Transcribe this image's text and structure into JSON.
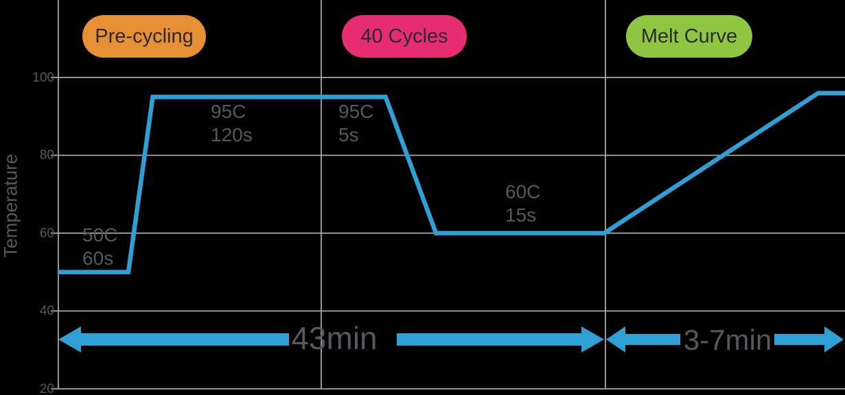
{
  "colors": {
    "background": "#000000",
    "line_blue": "#2fa0d6",
    "grid_gray": "#a8a8a8",
    "text_gray": "#57585b",
    "badge_text": "#2a2a2c",
    "precycling_orange": "#e78f35",
    "cycles_pink": "#e62d6f",
    "melt_green": "#8ec541"
  },
  "axis": {
    "ylabel": "Temperature",
    "yticks": [
      "100",
      "80",
      "60",
      "40",
      "20"
    ]
  },
  "badges": [
    {
      "label": "Pre-cycling",
      "color": "#e78f35"
    },
    {
      "label": "40 Cycles",
      "color": "#e62d6f"
    },
    {
      "label": "Melt Curve",
      "color": "#8ec541"
    }
  ],
  "annotations": [
    {
      "temp": "50C",
      "time": "60s"
    },
    {
      "temp": "95C",
      "time": "120s"
    },
    {
      "temp": "95C",
      "time": "5s"
    },
    {
      "temp": "60C",
      "time": "15s"
    }
  ],
  "durations": {
    "cycling": "43min",
    "melt": "3-7min"
  },
  "chart_data": {
    "type": "line",
    "title": "",
    "xlabel": "",
    "ylabel": "Temperature",
    "ylim": [
      20,
      100
    ],
    "yticks": [
      100,
      80,
      60,
      40,
      20
    ],
    "grid": true,
    "phases": [
      {
        "name": "Pre-cycling",
        "steps": [
          {
            "temp_C": 50,
            "hold": "60s"
          },
          {
            "temp_C": 95,
            "hold": "120s"
          }
        ]
      },
      {
        "name": "40 Cycles",
        "steps": [
          {
            "temp_C": 95,
            "hold": "5s"
          },
          {
            "temp_C": 60,
            "hold": "15s"
          }
        ]
      },
      {
        "name": "Melt Curve",
        "ramp": {
          "from_C": 60,
          "to_C": 96
        },
        "duration": "3-7min"
      }
    ],
    "total_durations": [
      {
        "label": "43min",
        "covers": [
          "Pre-cycling",
          "40 Cycles"
        ]
      },
      {
        "label": "3-7min",
        "covers": [
          "Melt Curve"
        ]
      }
    ],
    "series": [
      {
        "name": "temperature-profile",
        "x_fraction": [
          0,
          0.089,
          0.12,
          0.416,
          0.48,
          0.694,
          0.966,
          1.0
        ],
        "temp_C": [
          50,
          50,
          95,
          95,
          60,
          60,
          96,
          96
        ]
      }
    ]
  }
}
